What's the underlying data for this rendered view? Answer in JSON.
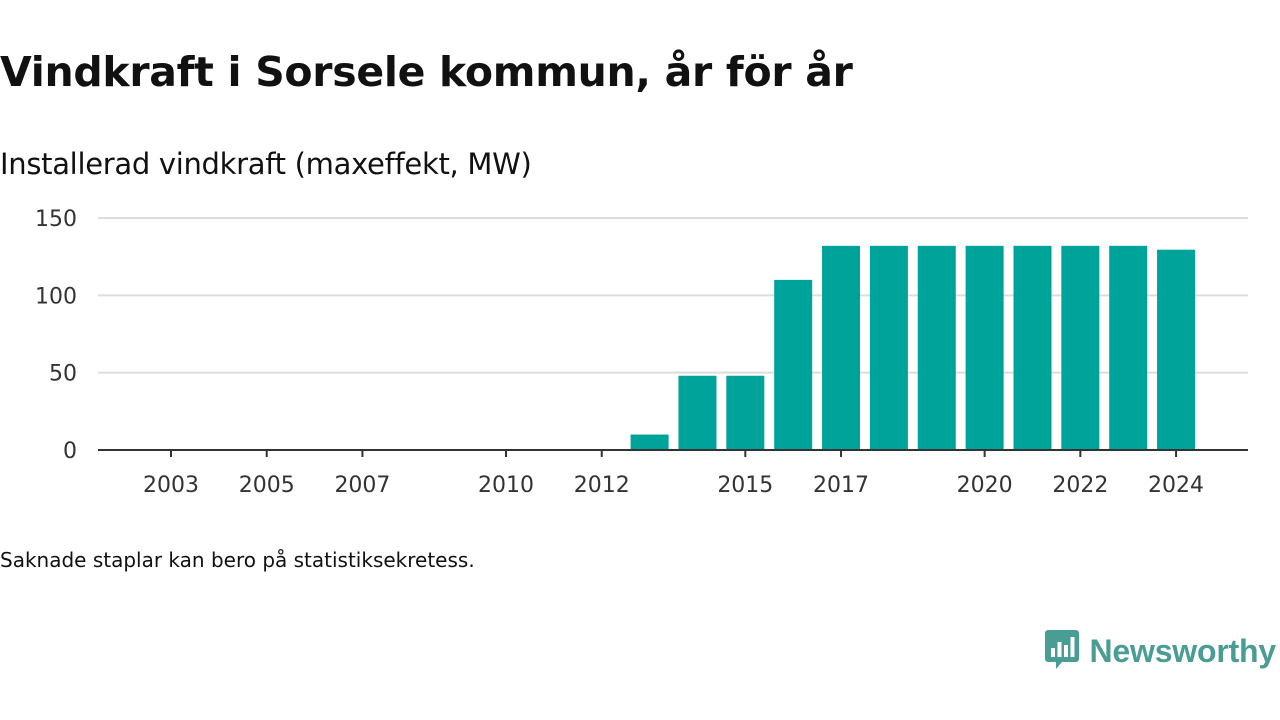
{
  "header": {
    "title": "Vindkraft i Sorsele kommun, år för år",
    "subtitle": "Installerad vindkraft (maxeffekt, MW)"
  },
  "footnote": "Saknade staplar kan bero på statistiksekretess.",
  "brand": {
    "name": "Newsworthy",
    "color": "#4a9d94",
    "icon": "newsworthy-logo-icon"
  },
  "colors": {
    "bar": "#00a39a",
    "grid": "#dddddd",
    "axis": "#333333",
    "text": "#333333"
  },
  "chart_data": {
    "type": "bar",
    "title": "Vindkraft i Sorsele kommun, år för år",
    "subtitle": "Installerad vindkraft (maxeffekt, MW)",
    "xlabel": "",
    "ylabel": "",
    "x": [
      2003,
      2004,
      2005,
      2006,
      2007,
      2008,
      2009,
      2010,
      2011,
      2012,
      2013,
      2014,
      2015,
      2016,
      2017,
      2018,
      2019,
      2020,
      2021,
      2022,
      2023,
      2024
    ],
    "values": [
      null,
      null,
      null,
      null,
      null,
      null,
      null,
      null,
      null,
      null,
      10,
      48,
      48,
      110,
      132,
      132,
      132,
      132,
      132,
      132,
      132,
      129.5
    ],
    "x_tick_labels": [
      "2003",
      "2005",
      "2007",
      "2010",
      "2012",
      "2015",
      "2017",
      "2020",
      "2022",
      "2024"
    ],
    "y_ticks": [
      0,
      50,
      100,
      150
    ],
    "ylim": [
      0,
      150
    ],
    "grid": true,
    "legend": "none"
  }
}
